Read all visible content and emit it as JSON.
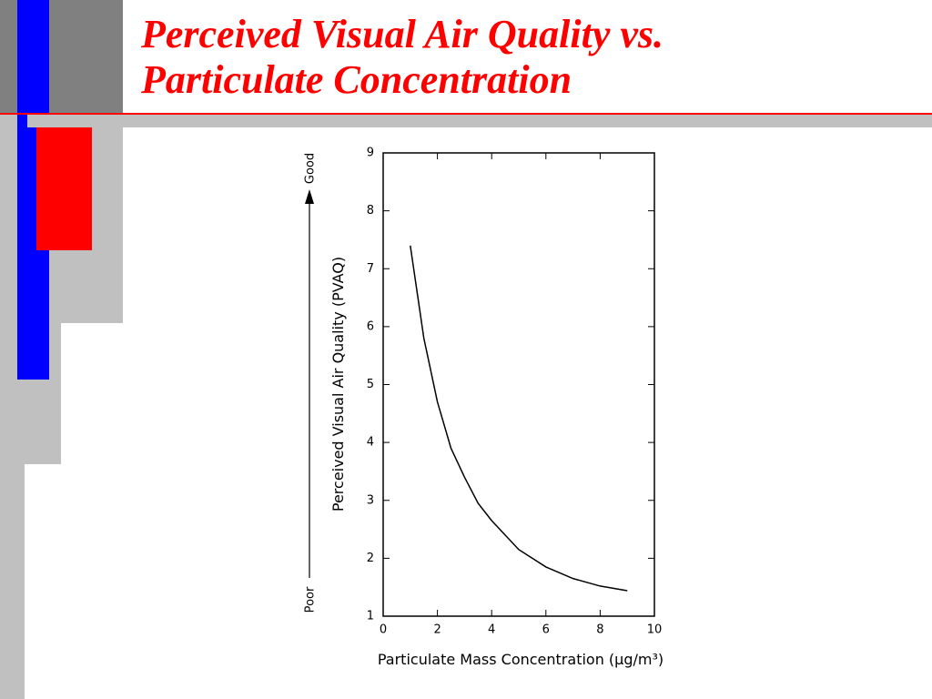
{
  "slide": {
    "title_lines": [
      "Perceived Visual Air Quality vs.",
      "Particulate Concentration"
    ]
  },
  "chart_data": {
    "type": "line",
    "x_label": "Particulate Mass Concentration (μg/m³)",
    "y_label": "Perceived Visual Air Quality (PVAQ)",
    "annotations": {
      "top": "Good",
      "bottom": "Poor"
    },
    "x": [
      1,
      1.5,
      2,
      2.5,
      3,
      3.5,
      4,
      5,
      6,
      7,
      8,
      9
    ],
    "series": [
      {
        "color": "#000000",
        "values": [
          7.4,
          5.8,
          4.7,
          3.9,
          3.4,
          2.95,
          2.65,
          2.15,
          1.85,
          1.65,
          1.52,
          1.44
        ]
      }
    ],
    "xlim": [
      0,
      10
    ],
    "xticks": [
      0,
      2,
      4,
      6,
      8,
      10
    ],
    "ylim": [
      1,
      9
    ],
    "yticks": [
      1,
      2,
      3,
      4,
      5,
      6,
      7,
      8,
      9
    ],
    "grid": false
  }
}
